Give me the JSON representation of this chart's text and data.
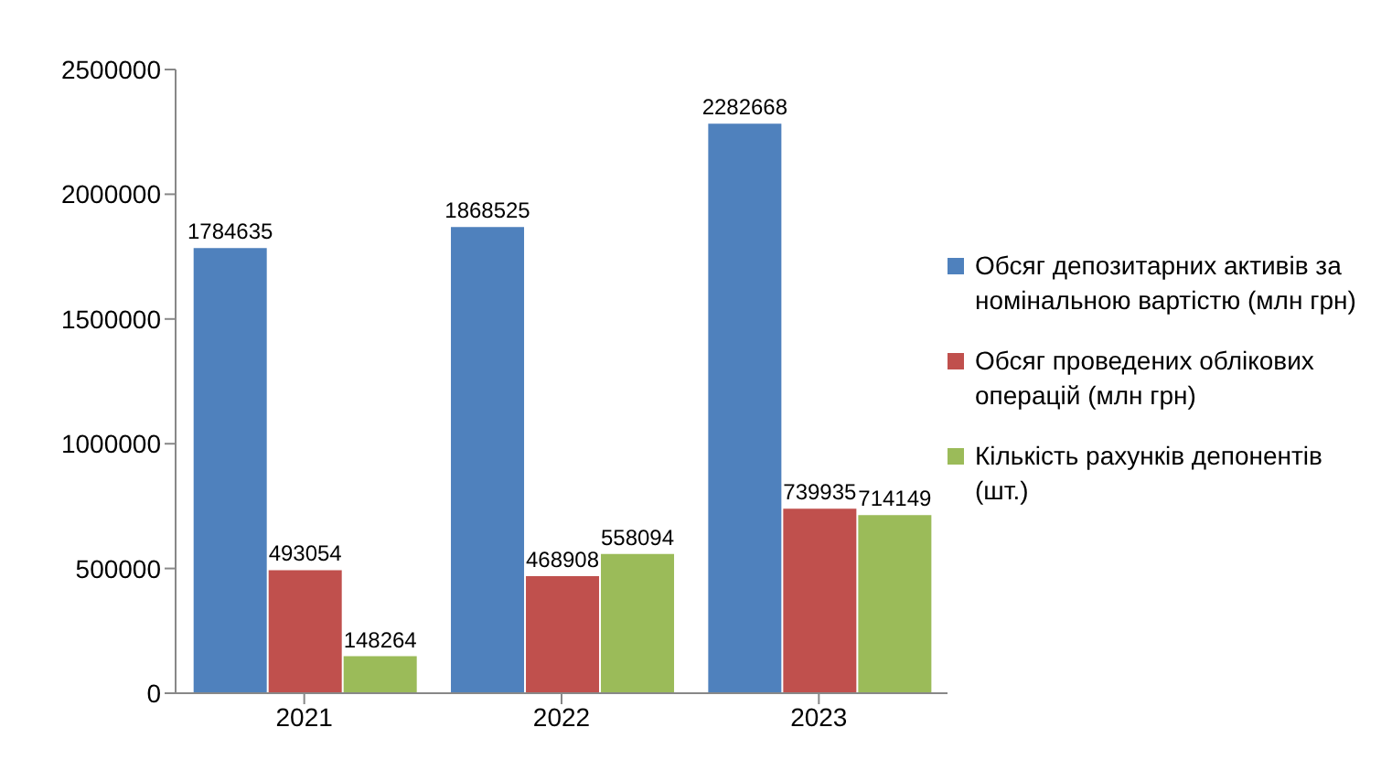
{
  "chart_data": {
    "type": "bar",
    "categories": [
      "2021",
      "2022",
      "2023"
    ],
    "series": [
      {
        "name": "Обсяг депозитарних активів за номінальною вартістю (млн грн)",
        "color": "#4f81bd",
        "values": [
          1784635,
          1868525,
          2282668
        ]
      },
      {
        "name": "Обсяг проведених облікових операцій (млн грн)",
        "color": "#c0504d",
        "values": [
          493054,
          468908,
          739935
        ]
      },
      {
        "name": "Кількість рахунків депонентів (шт.)",
        "color": "#9bbb59",
        "values": [
          148264,
          558094,
          714149
        ]
      }
    ],
    "ylim": [
      0,
      2500000
    ],
    "yticks": [
      0,
      500000,
      1000000,
      1500000,
      2000000,
      2500000
    ],
    "grid": false,
    "legend": "right",
    "data_labels": true
  }
}
